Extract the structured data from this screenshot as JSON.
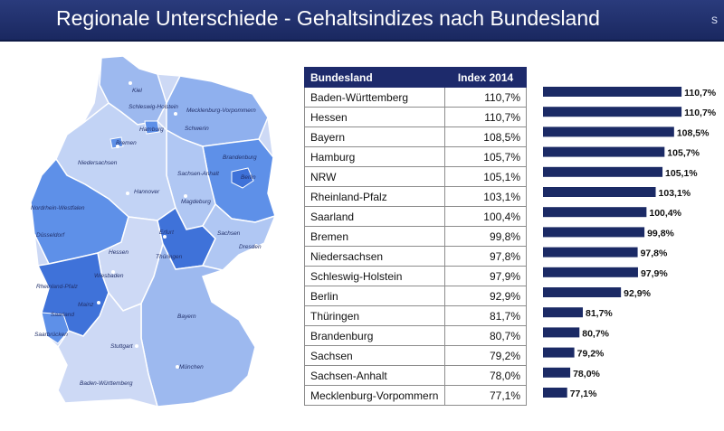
{
  "header": {
    "title": "Regionale Unterschiede - Gehaltsindizes nach Bundesland",
    "corner_glyph": "s"
  },
  "colors": {
    "header": "#1d2a6b",
    "bar": "#1b2a65",
    "map_light": "#cdd9f5",
    "map_mid": "#9db9ef",
    "map_dark": "#5e90e8",
    "map_deep": "#3f72d9"
  },
  "map": {
    "city_labels": [
      "Kiel",
      "Schleswig-Holstein",
      "Hamburg",
      "Mecklenburg-Vorpommern",
      "Schwerin",
      "Bremen",
      "Niedersachsen",
      "Brandenburg",
      "Berlin",
      "Sachsen-Anhalt",
      "Hannover",
      "Magdeburg",
      "Nordrhein-Westfalen",
      "Düsseldorf",
      "Erfurt",
      "Hessen",
      "Thüringen",
      "Sachsen",
      "Dresden",
      "Wiesbaden",
      "Rheinland-Pfalz",
      "Mainz",
      "Saarland",
      "Saarbrücken",
      "Bayern",
      "Stuttgart",
      "München",
      "Baden-Württemberg"
    ]
  },
  "table": {
    "col_state": "Bundesland",
    "col_index": "Index 2014",
    "rows": [
      {
        "state": "Baden-Württemberg",
        "index": "110,7%"
      },
      {
        "state": "Hessen",
        "index": "110,7%"
      },
      {
        "state": "Bayern",
        "index": "108,5%"
      },
      {
        "state": "Hamburg",
        "index": "105,7%"
      },
      {
        "state": "NRW",
        "index": "105,1%"
      },
      {
        "state": "Rheinland-Pfalz",
        "index": "103,1%"
      },
      {
        "state": "Saarland",
        "index": "100,4%"
      },
      {
        "state": "Bremen",
        "index": "99,8%"
      },
      {
        "state": "Niedersachsen",
        "index": "97,8%"
      },
      {
        "state": "Schleswig-Holstein",
        "index": "97,9%"
      },
      {
        "state": "Berlin",
        "index": "92,9%"
      },
      {
        "state": "Thüringen",
        "index": "81,7%"
      },
      {
        "state": "Brandenburg",
        "index": "80,7%"
      },
      {
        "state": "Sachsen",
        "index": "79,2%"
      },
      {
        "state": "Sachsen-Anhalt",
        "index": "78,0%"
      },
      {
        "state": "Mecklenburg-Vorpommern",
        "index": "77,1%"
      }
    ]
  },
  "chart_data": {
    "type": "bar",
    "orientation": "horizontal",
    "categories": [
      "Baden-Württemberg",
      "Hessen",
      "Bayern",
      "Hamburg",
      "NRW",
      "Rheinland-Pfalz",
      "Saarland",
      "Bremen",
      "Niedersachsen",
      "Schleswig-Holstein",
      "Berlin",
      "Thüringen",
      "Brandenburg",
      "Sachsen",
      "Sachsen-Anhalt",
      "Mecklenburg-Vorpommern"
    ],
    "values": [
      110.7,
      110.7,
      108.5,
      105.7,
      105.1,
      103.1,
      100.4,
      99.8,
      97.8,
      97.9,
      92.9,
      81.7,
      80.7,
      79.2,
      78.0,
      77.1
    ],
    "labels": [
      "110,7%",
      "110,7%",
      "108,5%",
      "105,7%",
      "105,1%",
      "103,1%",
      "100,4%",
      "99,8%",
      "97,8%",
      "97,9%",
      "92,9%",
      "81,7%",
      "80,7%",
      "79,2%",
      "78,0%",
      "77,1%"
    ],
    "title": "",
    "xlabel": "",
    "ylabel": "",
    "xlim": [
      70,
      112
    ],
    "grid": false,
    "legend": "none"
  }
}
